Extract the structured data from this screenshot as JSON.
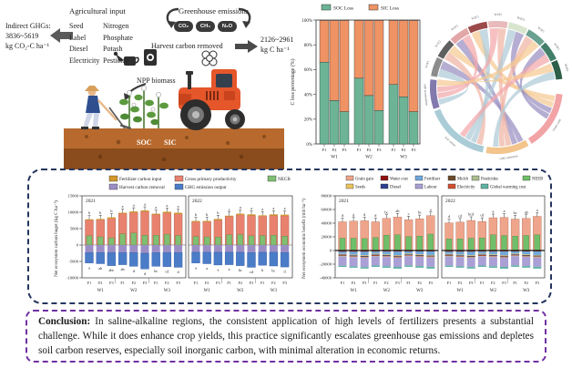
{
  "illustration": {
    "indirect_ghg": {
      "line1": "Indirect GHGs:",
      "line2": "3836~5619",
      "line3": "kg CO₂-C ha⁻¹"
    },
    "agricultural_input": {
      "title": "Agricultural input",
      "col1": [
        "Seed",
        "Label",
        "Diesel",
        "Electricity"
      ],
      "col2": [
        "Nitrogen",
        "Phosphate",
        "Potash",
        "Pesticide"
      ]
    },
    "greenhouse": {
      "title": "Greenhouse emissions",
      "gases": [
        "CO₂",
        "CH₄",
        "N₂O"
      ]
    },
    "harvest": {
      "label": "Harvest carbon removed",
      "value_line1": "2126~2961",
      "value_line2": "kg C ha⁻¹"
    },
    "npp_label": "NPP biomass",
    "soil_labels": {
      "soc": "SOC",
      "sic": "SIC"
    }
  },
  "chart_data": [
    {
      "id": "c-loss-stacked",
      "type": "bar",
      "subtype": "stacked-100",
      "panel_tag": "(a)",
      "ylabel": "C loss percentage (%)",
      "legend": [
        {
          "label": "SOC Loss",
          "color": "#6cb495"
        },
        {
          "label": "SIC Loss",
          "color": "#ef9365"
        }
      ],
      "groups": [
        "W1",
        "W2",
        "W3"
      ],
      "categories": [
        "F1",
        "F2",
        "F3"
      ],
      "series": [
        {
          "name": "SOC Loss",
          "values": [
            66,
            35,
            26,
            53,
            39,
            27,
            48,
            38,
            26
          ]
        },
        {
          "name": "SIC Loss",
          "values": [
            34,
            65,
            74,
            47,
            61,
            73,
            52,
            62,
            74
          ]
        }
      ],
      "yticks": [
        0,
        20,
        40,
        60,
        80,
        100
      ],
      "ytick_suffix": "%",
      "ylim": [
        0,
        100
      ]
    },
    {
      "id": "carbon-flow-chord",
      "type": "chord",
      "top_segments": [
        {
          "label": "W1F1",
          "color": "#8c8c8c"
        },
        {
          "label": "W1F2",
          "color": "#606060"
        },
        {
          "label": "W1F3",
          "color": "#e3a6a6"
        },
        {
          "label": "W2F1",
          "color": "#9b4a4a"
        },
        {
          "label": "W2F2",
          "color": "#e8baba"
        },
        {
          "label": "W2F3",
          "color": "#d9e6cf"
        },
        {
          "label": "W3F1",
          "color": "#6aa191"
        },
        {
          "label": "W3F2",
          "color": "#417f68"
        },
        {
          "label": "W3F3",
          "color": "#2e5f48"
        }
      ],
      "bottom_segments": [
        {
          "label": "NPP accumulation",
          "color": "#8279ad"
        },
        {
          "label": "Soil carbon",
          "color": "#a9ccd6"
        },
        {
          "label": "GHG emissions",
          "color": "#f3c48b"
        },
        {
          "label": "Grain yield",
          "color": "#f2a3a6"
        }
      ],
      "ribbon_colors": [
        "#aecbd7",
        "#f0b4a4",
        "#9a8fc0",
        "#f5c992",
        "#f2a8ab"
      ]
    },
    {
      "id": "necb-budget",
      "type": "bar",
      "subtype": "diverging-stacked",
      "ylabel": "Net ecosystem carbon buget (kg C ha⁻¹)",
      "ylim": [
        -10000,
        15000
      ],
      "yticks": [
        15000,
        10000,
        5000,
        0,
        -5000,
        -10000
      ],
      "legend_rows": [
        [
          {
            "label": "Fertilizer carbon input",
            "color": "#d29a2b"
          },
          {
            "label": "Gross primary productivity",
            "color": "#e8826e"
          },
          {
            "label": "NECB",
            "color": "#7fbf72"
          }
        ],
        [
          {
            "label": "Harvest carbon removal",
            "color": "#9b8ec4"
          },
          {
            "label": "GHG emission output",
            "color": "#4a7cc7"
          }
        ]
      ],
      "groups": [
        "W1",
        "W2",
        "W3"
      ],
      "categories": [
        "F1",
        "F2",
        "F3"
      ],
      "panels": [
        {
          "label": "2021",
          "gpp": [
            7600,
            7700,
            8100,
            9600,
            9900,
            10200,
            9300,
            9800,
            9500
          ],
          "fertilizer": [
            250,
            250,
            350,
            250,
            350,
            350,
            250,
            350,
            350
          ],
          "necb": [
            2800,
            2500,
            2200,
            3400,
            3700,
            3000,
            3000,
            3300,
            2900
          ],
          "harvest": [
            -2300,
            -2300,
            -2300,
            -2300,
            -2300,
            -2500,
            -2300,
            -2300,
            -2300
          ],
          "ghg": [
            -3200,
            -3400,
            -4000,
            -3700,
            -4200,
            -4800,
            -4200,
            -4300,
            -4500
          ],
          "sig_top": [
            "b",
            "b",
            "b",
            "a",
            "a",
            "a",
            "a",
            "a",
            "a"
          ],
          "sig_bottom": [
            "a",
            "ab",
            "abc",
            "ab",
            "d",
            "d",
            "bc",
            "cd",
            "d"
          ]
        },
        {
          "label": "2022",
          "gpp": [
            7100,
            7100,
            7600,
            8700,
            9200,
            9000,
            8800,
            9000,
            8900
          ],
          "fertilizer": [
            250,
            250,
            350,
            250,
            350,
            350,
            250,
            350,
            350
          ],
          "necb": [
            2600,
            2500,
            2400,
            3100,
            3200,
            2800,
            2900,
            3000,
            2700
          ],
          "harvest": [
            -2200,
            -2200,
            -2200,
            -2200,
            -2200,
            -2300,
            -2200,
            -2200,
            -2300
          ],
          "ghg": [
            -3300,
            -3500,
            -3900,
            -3800,
            -4100,
            -4500,
            -4000,
            -4200,
            -4400
          ],
          "sig_top": [
            "b",
            "b",
            "b",
            "a",
            "a",
            "a",
            "a",
            "a",
            "a"
          ],
          "sig_bottom": [
            "a",
            "a",
            "a",
            "a",
            "bc",
            "cd",
            "b",
            "bc",
            "d"
          ]
        }
      ]
    },
    {
      "id": "neeb-economic",
      "type": "bar",
      "subtype": "diverging-stacked",
      "ylabel": "Net ecosystem economic benefit (rmb ha⁻¹)",
      "ylim": [
        -40000,
        80000
      ],
      "yticks": [
        80000,
        60000,
        40000,
        20000,
        0,
        -20000,
        -40000
      ],
      "legend_rows": [
        [
          {
            "label": "Grain gain",
            "color": "#efa58b"
          },
          {
            "label": "Water cost",
            "color": "#8f1010"
          },
          {
            "label": "Fertilizer",
            "color": "#6fa8dc"
          },
          {
            "label": "Mulch",
            "color": "#6b4a2b"
          },
          {
            "label": "Pesticides",
            "color": "#a9bf8f"
          },
          {
            "label": "NEEB",
            "color": "#6fbf6a"
          }
        ],
        [
          {
            "label": "Seeds",
            "color": "#e9c45e"
          },
          {
            "label": "Diesel",
            "color": "#2c3f8f"
          },
          {
            "label": "Labour",
            "color": "#aaa0d6"
          },
          {
            "label": "Electricity",
            "color": "#d05030"
          },
          {
            "label": "Global warming cost",
            "color": "#5fb3a3"
          }
        ]
      ],
      "groups": [
        "W1",
        "W2",
        "W3"
      ],
      "categories": [
        "F1",
        "F2",
        "F3"
      ],
      "cost_order": [
        "Water cost",
        "Fertilizer",
        "Seeds",
        "Diesel",
        "Mulch",
        "Electricity",
        "Pesticides",
        "Labour",
        "Global warming cost"
      ],
      "panels": [
        {
          "label": "2021",
          "grain": [
            42000,
            43000,
            43500,
            42000,
            47000,
            49000,
            45000,
            46500,
            51000
          ],
          "neeb": [
            18000,
            18000,
            17500,
            19000,
            22500,
            23000,
            20500,
            21000,
            24000
          ],
          "costs": {
            "Water cost": [
              1800,
              1800,
              1800,
              1600,
              1600,
              1600,
              1400,
              1400,
              1400
            ],
            "Fertilizer": [
              3200,
              4200,
              5200,
              3200,
              4200,
              5200,
              3200,
              4200,
              5200
            ],
            "Seeds": [
              900,
              900,
              900,
              900,
              900,
              900,
              900,
              900,
              900
            ],
            "Diesel": [
              700,
              700,
              700,
              700,
              700,
              700,
              700,
              700,
              700
            ],
            "Mulch": [
              900,
              900,
              900,
              900,
              900,
              900,
              900,
              900,
              900
            ],
            "Electricity": [
              700,
              700,
              700,
              700,
              700,
              700,
              700,
              700,
              700
            ],
            "Pesticides": [
              500,
              500,
              500,
              500,
              500,
              500,
              500,
              500,
              500
            ],
            "Labour": [
              13500,
              13500,
              13500,
              13500,
              13500,
              13500,
              13500,
              13500,
              13500
            ],
            "Global warming cost": [
              1800,
              2000,
              2300,
              2000,
              2300,
              2600,
              2100,
              2400,
              2700
            ]
          },
          "sig_top": [
            "d",
            "d",
            "d",
            "d",
            "bc",
            "ab",
            "c",
            "bc",
            "a"
          ]
        },
        {
          "label": "2022",
          "grain": [
            40500,
            41500,
            44000,
            42500,
            48000,
            48500,
            46000,
            47000,
            50000
          ],
          "neeb": [
            17000,
            17000,
            18000,
            18500,
            23000,
            22000,
            21000,
            22000,
            23000
          ],
          "costs": {
            "Water cost": [
              1800,
              1800,
              1800,
              1600,
              1600,
              1600,
              1400,
              1400,
              1400
            ],
            "Fertilizer": [
              3200,
              4200,
              5200,
              3200,
              4200,
              5200,
              3200,
              4200,
              5200
            ],
            "Seeds": [
              900,
              900,
              900,
              900,
              900,
              900,
              900,
              900,
              900
            ],
            "Diesel": [
              700,
              700,
              700,
              700,
              700,
              700,
              700,
              700,
              700
            ],
            "Mulch": [
              900,
              900,
              900,
              900,
              900,
              900,
              900,
              900,
              900
            ],
            "Electricity": [
              700,
              700,
              700,
              700,
              700,
              700,
              700,
              700,
              700
            ],
            "Pesticides": [
              500,
              500,
              500,
              500,
              500,
              500,
              500,
              500,
              500
            ],
            "Labour": [
              13500,
              13500,
              13500,
              13500,
              13500,
              13500,
              13500,
              13500,
              13500
            ],
            "Global warming cost": [
              1800,
              2000,
              2300,
              2000,
              2300,
              2600,
              2100,
              2400,
              2700
            ]
          },
          "sig_top": [
            "d",
            "cd",
            "bcd",
            "cd",
            "a",
            "a",
            "bc",
            "ab",
            "a"
          ]
        }
      ]
    }
  ],
  "conclusion": {
    "title": "Conclusion:",
    "text": " In saline-alkaline regions, the consistent application of high levels of fertilizers presents a substantial challenge. While it does enhance crop yields, this practice significantly escalates greenhouse gas emissions and depletes soil carbon reserves, especially soil inorganic carbon, with minimal alteration in economic returns."
  }
}
